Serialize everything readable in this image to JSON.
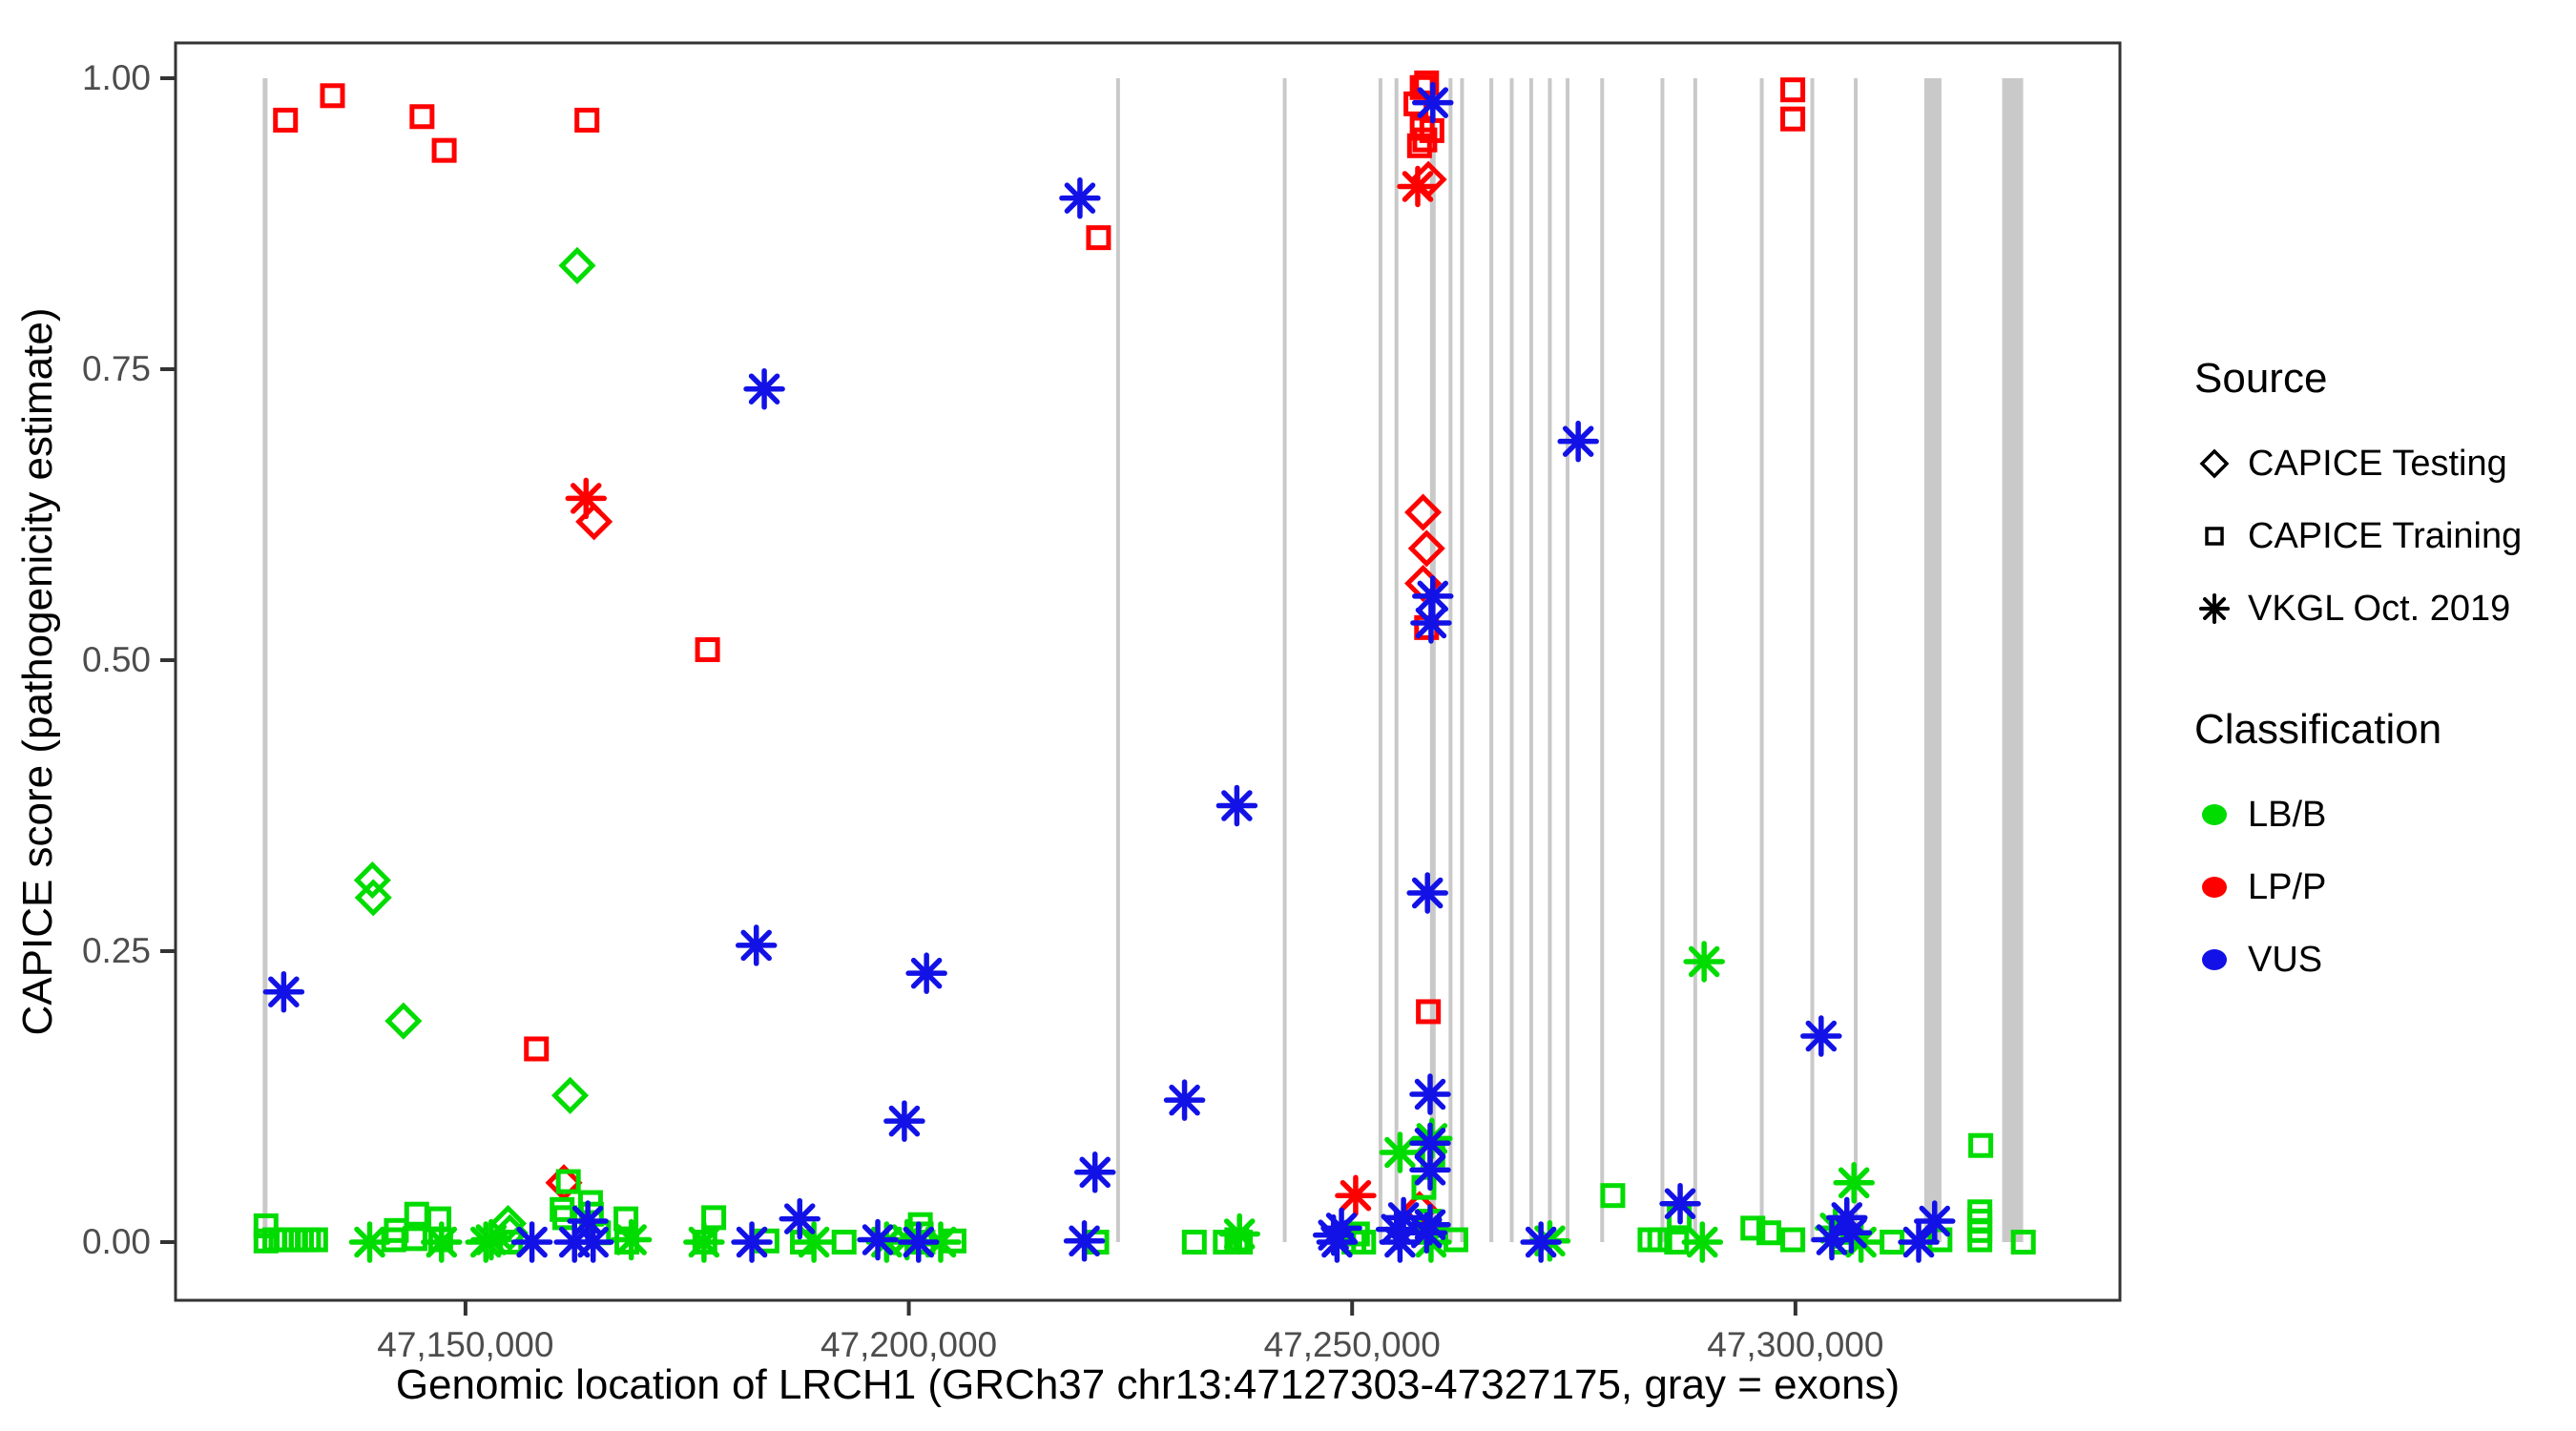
{
  "chart_data": {
    "type": "scatter",
    "xlabel": "Genomic location of LRCH1 (GRCh37 chr13:47127303-47327175, gray = exons)",
    "ylabel": "CAPICE score (pathogenicity estimate)",
    "xlim": [
      47117300,
      47336600
    ],
    "ylim": [
      0,
      1
    ],
    "grid": false,
    "x_ticks": [
      {
        "label": "47,150,000",
        "value": 47150000
      },
      {
        "label": "47,200,000",
        "value": 47200000
      },
      {
        "label": "47,250,000",
        "value": 47250000
      },
      {
        "label": "47,300,000",
        "value": 47300000
      }
    ],
    "y_ticks": [
      {
        "label": "1.00",
        "value": 1.0
      },
      {
        "label": "0.75",
        "value": 0.75
      },
      {
        "label": "0.50",
        "value": 0.5
      },
      {
        "label": "0.25",
        "value": 0.25
      },
      {
        "label": "0.00",
        "value": 0.0
      }
    ],
    "legend": {
      "source": {
        "title": "Source",
        "items": [
          {
            "label": "CAPICE Testing",
            "shape": "diamond"
          },
          {
            "label": "CAPICE Training",
            "shape": "square"
          },
          {
            "label": "VKGL Oct. 2019",
            "shape": "asterisk"
          }
        ]
      },
      "classification": {
        "title": "Classification",
        "items": [
          {
            "label": "LB/B",
            "color_key": "lbb"
          },
          {
            "label": "LP/P",
            "color_key": "lpp"
          },
          {
            "label": "VUS",
            "color_key": "vus"
          }
        ]
      }
    },
    "colors": {
      "lbb": "#00DC00",
      "lpp": "#FF0000",
      "vus": "#1212E6",
      "exon": "#C9C9C9",
      "axis": "#333333",
      "tick_label": "#4D4D4D"
    },
    "exons": [
      {
        "pos": 47127400,
        "w": 5
      },
      {
        "pos": 47223600,
        "w": 4
      },
      {
        "pos": 47242400,
        "w": 4
      },
      {
        "pos": 47253200,
        "w": 4
      },
      {
        "pos": 47255000,
        "w": 4
      },
      {
        "pos": 47259100,
        "w": 6
      },
      {
        "pos": 47261100,
        "w": 4
      },
      {
        "pos": 47262400,
        "w": 4
      },
      {
        "pos": 47265700,
        "w": 4
      },
      {
        "pos": 47268000,
        "w": 4
      },
      {
        "pos": 47270200,
        "w": 4
      },
      {
        "pos": 47272300,
        "w": 4
      },
      {
        "pos": 47274300,
        "w": 4
      },
      {
        "pos": 47278200,
        "w": 4
      },
      {
        "pos": 47285000,
        "w": 4
      },
      {
        "pos": 47288700,
        "w": 4
      },
      {
        "pos": 47296200,
        "w": 4
      },
      {
        "pos": 47301900,
        "w": 4
      },
      {
        "pos": 47306800,
        "w": 4
      },
      {
        "pos": 47315500,
        "w": 18
      },
      {
        "pos": 47324500,
        "w": 22
      }
    ],
    "points": [
      [
        47129700,
        0.964,
        "s",
        "lpp"
      ],
      [
        47135000,
        0.985,
        "s",
        "lpp"
      ],
      [
        47145100,
        0.967,
        "s",
        "lpp"
      ],
      [
        47147600,
        0.938,
        "s",
        "lpp"
      ],
      [
        47163700,
        0.964,
        "s",
        "lpp"
      ],
      [
        47158000,
        0.166,
        "s",
        "lpp"
      ],
      [
        47177300,
        0.509,
        "s",
        "lpp"
      ],
      [
        47221400,
        0.863,
        "s",
        "lpp"
      ],
      [
        47258400,
        0.996,
        "s",
        "lpp"
      ],
      [
        47257900,
        0.992,
        "s",
        "lpp"
      ],
      [
        47257200,
        0.978,
        "s",
        "lpp"
      ],
      [
        47257900,
        0.957,
        "s",
        "lpp"
      ],
      [
        47259000,
        0.955,
        "s",
        "lpp"
      ],
      [
        47258200,
        0.947,
        "s",
        "lpp"
      ],
      [
        47257600,
        0.942,
        "s",
        "lpp"
      ],
      [
        47258400,
        0.528,
        "s",
        "lpp"
      ],
      [
        47258600,
        0.198,
        "s",
        "lpp"
      ],
      [
        47299700,
        0.99,
        "s",
        "lpp"
      ],
      [
        47299700,
        0.965,
        "s",
        "lpp"
      ],
      [
        47164500,
        0.619,
        "d",
        "lpp"
      ],
      [
        47258600,
        0.913,
        "d",
        "lpp"
      ],
      [
        47258000,
        0.627,
        "d",
        "lpp"
      ],
      [
        47258400,
        0.596,
        "d",
        "lpp"
      ],
      [
        47258000,
        0.566,
        "d",
        "lpp"
      ],
      [
        47161100,
        0.051,
        "d",
        "lpp"
      ],
      [
        47257600,
        0.028,
        "d",
        "lpp"
      ],
      [
        47163600,
        0.639,
        "a",
        "lpp"
      ],
      [
        47257400,
        0.907,
        "a",
        "lpp"
      ],
      [
        47250400,
        0.04,
        "a",
        "lpp"
      ],
      [
        47162600,
        0.839,
        "d",
        "lbb"
      ],
      [
        47139500,
        0.311,
        "d",
        "lbb"
      ],
      [
        47139600,
        0.296,
        "d",
        "lbb"
      ],
      [
        47143000,
        0.19,
        "d",
        "lbb"
      ],
      [
        47161800,
        0.126,
        "d",
        "lbb"
      ],
      [
        47155000,
        0.008,
        "d",
        "lbb"
      ],
      [
        47154800,
        0.016,
        "d",
        "lbb"
      ],
      [
        47127500,
        0.014,
        "s",
        "lbb"
      ],
      [
        47127500,
        0.001,
        "s",
        "lbb"
      ],
      [
        47128500,
        0.002,
        "s",
        "lbb"
      ],
      [
        47129200,
        0.002,
        "s",
        "lbb"
      ],
      [
        47129900,
        0.002,
        "s",
        "lbb"
      ],
      [
        47130700,
        0.002,
        "s",
        "lbb"
      ],
      [
        47131500,
        0.002,
        "s",
        "lbb"
      ],
      [
        47132300,
        0.002,
        "s",
        "lbb"
      ],
      [
        47133100,
        0.002,
        "s",
        "lbb"
      ],
      [
        47141900,
        0.002,
        "s",
        "lbb"
      ],
      [
        47142200,
        0.01,
        "s",
        "lbb"
      ],
      [
        47144300,
        0.003,
        "s",
        "lbb"
      ],
      [
        47144500,
        0.024,
        "s",
        "lbb"
      ],
      [
        47147000,
        0.02,
        "s",
        "lbb"
      ],
      [
        47147200,
        0.002,
        "s",
        "lbb"
      ],
      [
        47155100,
        0.0,
        "s",
        "lbb"
      ],
      [
        47160900,
        0.028,
        "s",
        "lbb"
      ],
      [
        47161200,
        0.021,
        "s",
        "lbb"
      ],
      [
        47161600,
        0.052,
        "s",
        "lbb"
      ],
      [
        47164100,
        0.034,
        "s",
        "lbb"
      ],
      [
        47164200,
        0.024,
        "s",
        "lbb"
      ],
      [
        47165000,
        0.008,
        "s",
        "lbb"
      ],
      [
        47168100,
        0.02,
        "s",
        "lbb"
      ],
      [
        47168200,
        0.0,
        "s",
        "lbb"
      ],
      [
        47177000,
        0.0,
        "s",
        "lbb"
      ],
      [
        47178000,
        0.021,
        "s",
        "lbb"
      ],
      [
        47184000,
        0.001,
        "s",
        "lbb"
      ],
      [
        47188000,
        0.0,
        "s",
        "lbb"
      ],
      [
        47192700,
        0.0,
        "s",
        "lbb"
      ],
      [
        47201300,
        0.015,
        "s",
        "lbb"
      ],
      [
        47201400,
        0.007,
        "s",
        "lbb"
      ],
      [
        47201600,
        0.0,
        "s",
        "lbb"
      ],
      [
        47205100,
        0.001,
        "s",
        "lbb"
      ],
      [
        47221200,
        0.0,
        "s",
        "lbb"
      ],
      [
        47232200,
        0.0,
        "s",
        "lbb"
      ],
      [
        47235700,
        0.0,
        "s",
        "lbb"
      ],
      [
        47237000,
        0.002,
        "s",
        "lbb"
      ],
      [
        47237400,
        0.0,
        "s",
        "lbb"
      ],
      [
        47250200,
        0.0,
        "s",
        "lbb"
      ],
      [
        47250600,
        0.007,
        "s",
        "lbb"
      ],
      [
        47251300,
        0.0,
        "s",
        "lbb"
      ],
      [
        47258100,
        0.047,
        "s",
        "lbb"
      ],
      [
        47258700,
        0.018,
        "s",
        "lbb"
      ],
      [
        47259100,
        0.075,
        "s",
        "lbb"
      ],
      [
        47261700,
        0.002,
        "s",
        "lbb"
      ],
      [
        47279400,
        0.04,
        "s",
        "lbb"
      ],
      [
        47283600,
        0.002,
        "s",
        "lbb"
      ],
      [
        47284700,
        0.002,
        "s",
        "lbb"
      ],
      [
        47286600,
        0.0,
        "s",
        "lbb"
      ],
      [
        47286900,
        0.021,
        "s",
        "lbb"
      ],
      [
        47295200,
        0.012,
        "s",
        "lbb"
      ],
      [
        47297000,
        0.008,
        "s",
        "lbb"
      ],
      [
        47299700,
        0.002,
        "s",
        "lbb"
      ],
      [
        47305200,
        0.0,
        "s",
        "lbb"
      ],
      [
        47310900,
        0.0,
        "s",
        "lbb"
      ],
      [
        47316300,
        0.002,
        "s",
        "lbb"
      ],
      [
        47320900,
        0.083,
        "s",
        "lbb"
      ],
      [
        47320800,
        0.026,
        "s",
        "lbb"
      ],
      [
        47320800,
        0.018,
        "s",
        "lbb"
      ],
      [
        47320800,
        0.01,
        "s",
        "lbb"
      ],
      [
        47320800,
        0.002,
        "s",
        "lbb"
      ],
      [
        47325700,
        0.0,
        "s",
        "lbb"
      ],
      [
        47139200,
        0.0,
        "a",
        "lbb"
      ],
      [
        47147300,
        0.0,
        "a",
        "lbb"
      ],
      [
        47152300,
        0.0,
        "a",
        "lbb"
      ],
      [
        47152900,
        0.002,
        "a",
        "lbb"
      ],
      [
        47168700,
        0.002,
        "a",
        "lbb"
      ],
      [
        47176900,
        0.0,
        "a",
        "lbb"
      ],
      [
        47189300,
        0.0,
        "a",
        "lbb"
      ],
      [
        47197500,
        0.0,
        "a",
        "lbb"
      ],
      [
        47199800,
        0.002,
        "a",
        "lbb"
      ],
      [
        47203600,
        0.0,
        "a",
        "lbb"
      ],
      [
        47237300,
        0.007,
        "a",
        "lbb"
      ],
      [
        47255400,
        0.077,
        "a",
        "lbb"
      ],
      [
        47258900,
        0.0,
        "a",
        "lbb"
      ],
      [
        47259000,
        0.089,
        "a",
        "lbb"
      ],
      [
        47272300,
        0.001,
        "a",
        "lbb"
      ],
      [
        47289500,
        0.0,
        "a",
        "lbb"
      ],
      [
        47289700,
        0.241,
        "a",
        "lbb"
      ],
      [
        47304500,
        0.012,
        "a",
        "lbb"
      ],
      [
        47306600,
        0.051,
        "a",
        "lbb"
      ],
      [
        47307400,
        0.0,
        "a",
        "lbb"
      ],
      [
        47129500,
        0.215,
        "a",
        "vus"
      ],
      [
        47157500,
        0.0,
        "a",
        "vus"
      ],
      [
        47162300,
        0.0,
        "a",
        "vus"
      ],
      [
        47163800,
        0.018,
        "a",
        "vus"
      ],
      [
        47164400,
        0.0,
        "a",
        "vus"
      ],
      [
        47182300,
        0.0,
        "a",
        "vus"
      ],
      [
        47182800,
        0.255,
        "a",
        "vus"
      ],
      [
        47183700,
        0.733,
        "a",
        "vus"
      ],
      [
        47187700,
        0.02,
        "a",
        "vus"
      ],
      [
        47196500,
        0.002,
        "a",
        "vus"
      ],
      [
        47199500,
        0.104,
        "a",
        "vus"
      ],
      [
        47201100,
        0.0,
        "a",
        "vus"
      ],
      [
        47202000,
        0.231,
        "a",
        "vus"
      ],
      [
        47219300,
        0.897,
        "a",
        "vus"
      ],
      [
        47219800,
        0.001,
        "a",
        "vus"
      ],
      [
        47221000,
        0.06,
        "a",
        "vus"
      ],
      [
        47231100,
        0.122,
        "a",
        "vus"
      ],
      [
        47237000,
        0.375,
        "a",
        "vus"
      ],
      [
        47247900,
        0.006,
        "a",
        "vus"
      ],
      [
        47248300,
        0.0,
        "a",
        "vus"
      ],
      [
        47248800,
        0.012,
        "a",
        "vus"
      ],
      [
        47255000,
        0.011,
        "a",
        "vus"
      ],
      [
        47255400,
        0.0,
        "a",
        "vus"
      ],
      [
        47255800,
        0.021,
        "a",
        "vus"
      ],
      [
        47258400,
        0.008,
        "a",
        "vus"
      ],
      [
        47258500,
        0.3,
        "a",
        "vus"
      ],
      [
        47258800,
        0.015,
        "a",
        "vus"
      ],
      [
        47258800,
        0.127,
        "a",
        "vus"
      ],
      [
        47258800,
        0.085,
        "a",
        "vus"
      ],
      [
        47258800,
        0.062,
        "a",
        "vus"
      ],
      [
        47258900,
        0.532,
        "a",
        "vus"
      ],
      [
        47259100,
        0.979,
        "a",
        "vus"
      ],
      [
        47259100,
        0.555,
        "a",
        "vus"
      ],
      [
        47271300,
        0.0,
        "a",
        "vus"
      ],
      [
        47275500,
        0.688,
        "a",
        "vus"
      ],
      [
        47287000,
        0.033,
        "a",
        "vus"
      ],
      [
        47302900,
        0.177,
        "a",
        "vus"
      ],
      [
        47304100,
        0.002,
        "a",
        "vus"
      ],
      [
        47305800,
        0.021,
        "a",
        "vus"
      ],
      [
        47306300,
        0.008,
        "a",
        "vus"
      ],
      [
        47313900,
        0.0,
        "a",
        "vus"
      ],
      [
        47315700,
        0.018,
        "a",
        "vus"
      ]
    ],
    "shape_map": {
      "d": "CAPICE Testing",
      "s": "CAPICE Training",
      "a": "VKGL Oct. 2019"
    },
    "class_map": {
      "lbb": "LB/B",
      "lpp": "LP/P",
      "vus": "VUS"
    }
  }
}
